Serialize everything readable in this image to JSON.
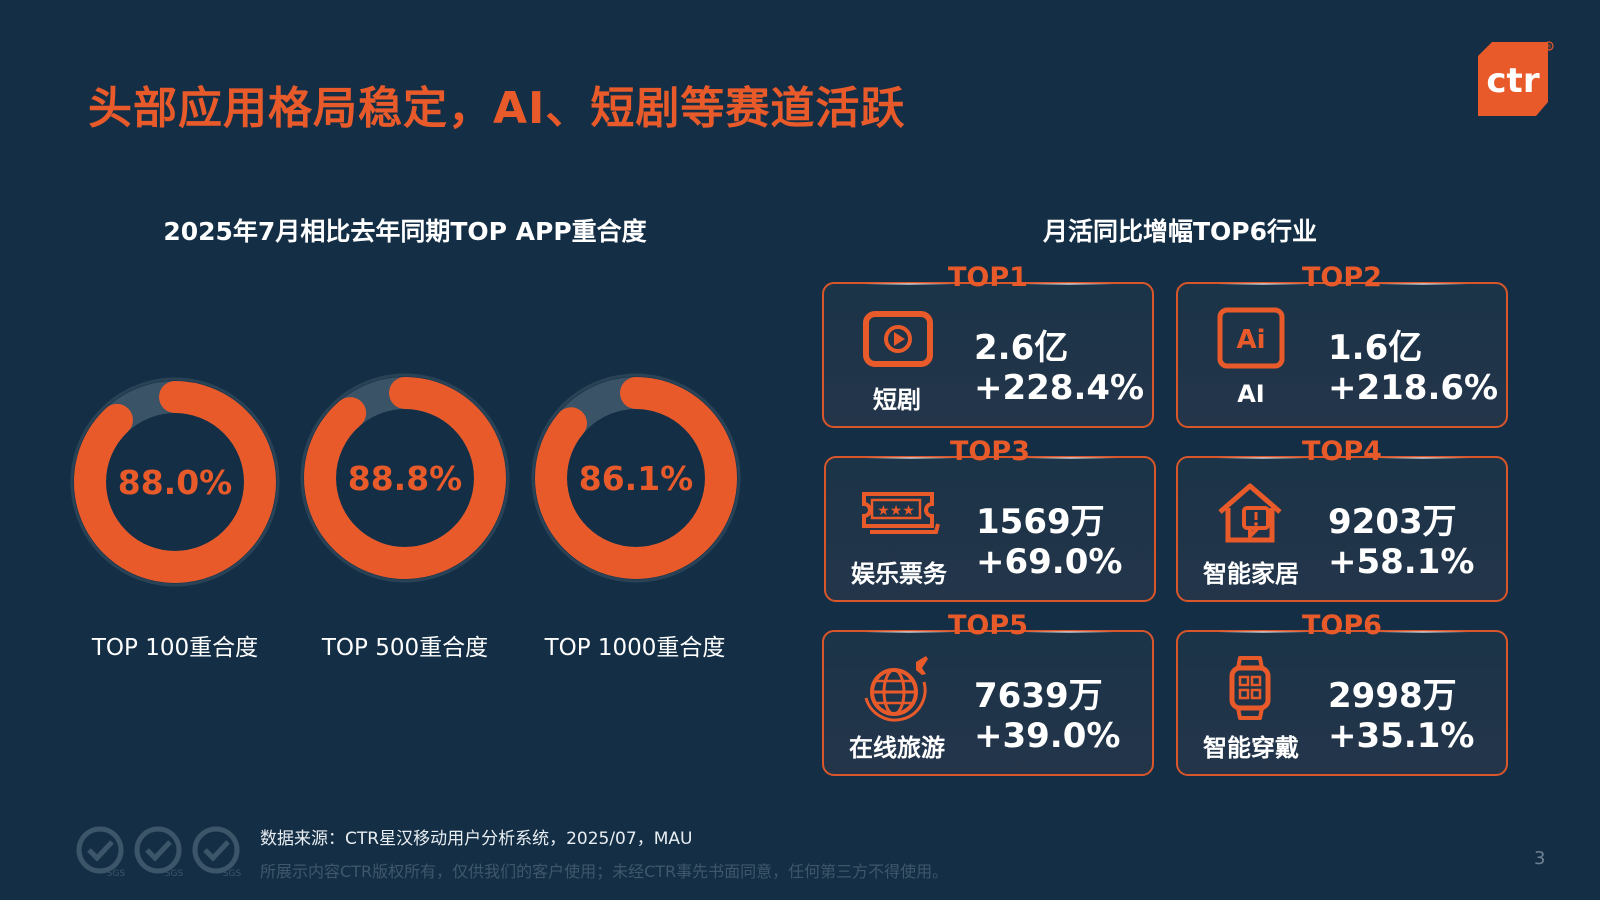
{
  "slide": {
    "title": "头部应用格局稳定，AI、短剧等赛道活跃",
    "logo_text": "ctr",
    "logo_mark": "®",
    "page_number": "3"
  },
  "left_section": {
    "title": "2025年7月相比去年同期TOP APP重合度"
  },
  "right_section": {
    "title": "月活同比增幅TOP6行业"
  },
  "chart_data": {
    "type": "pie",
    "title": "2025年7月相比去年同期TOP APP重合度",
    "categories": [
      "TOP 100重合度",
      "TOP 500重合度",
      "TOP 1000重合度"
    ],
    "values": [
      88.0,
      88.8,
      86.1
    ],
    "value_labels": [
      "88.0%",
      "88.8%",
      "86.1%"
    ],
    "unit": "%",
    "max": 100
  },
  "industries": [
    {
      "rank": "TOP1",
      "name": "短剧",
      "mau": "2.6亿",
      "growth": "+228.4%",
      "icon": "play-video-icon"
    },
    {
      "rank": "TOP2",
      "name": "AI",
      "mau": "1.6亿",
      "growth": "+218.6%",
      "icon": "ai-badge-icon"
    },
    {
      "rank": "TOP3",
      "name": "娱乐票务",
      "mau": "1569万",
      "growth": "+69.0%",
      "icon": "ticket-icon"
    },
    {
      "rank": "TOP4",
      "name": "智能家居",
      "mau": "9203万",
      "growth": "+58.1%",
      "icon": "smart-home-icon"
    },
    {
      "rank": "TOP5",
      "name": "在线旅游",
      "mau": "7639万",
      "growth": "+39.0%",
      "icon": "globe-plane-icon"
    },
    {
      "rank": "TOP6",
      "name": "智能穿戴",
      "mau": "2998万",
      "growth": "+35.1%",
      "icon": "smartwatch-icon"
    }
  ],
  "footer": {
    "source": "数据来源：CTR星汉移动用户分析系统，2025/07，MAU",
    "copyright": "所展示内容CTR版权所有，仅供我们的客户使用；未经CTR事先书面同意，任何第三方不得使用。",
    "cert_label": "SGS"
  },
  "colors": {
    "background": "#142f45",
    "accent": "#e95a2b",
    "donut_track": "#3b5366",
    "text": "#ffffff"
  }
}
